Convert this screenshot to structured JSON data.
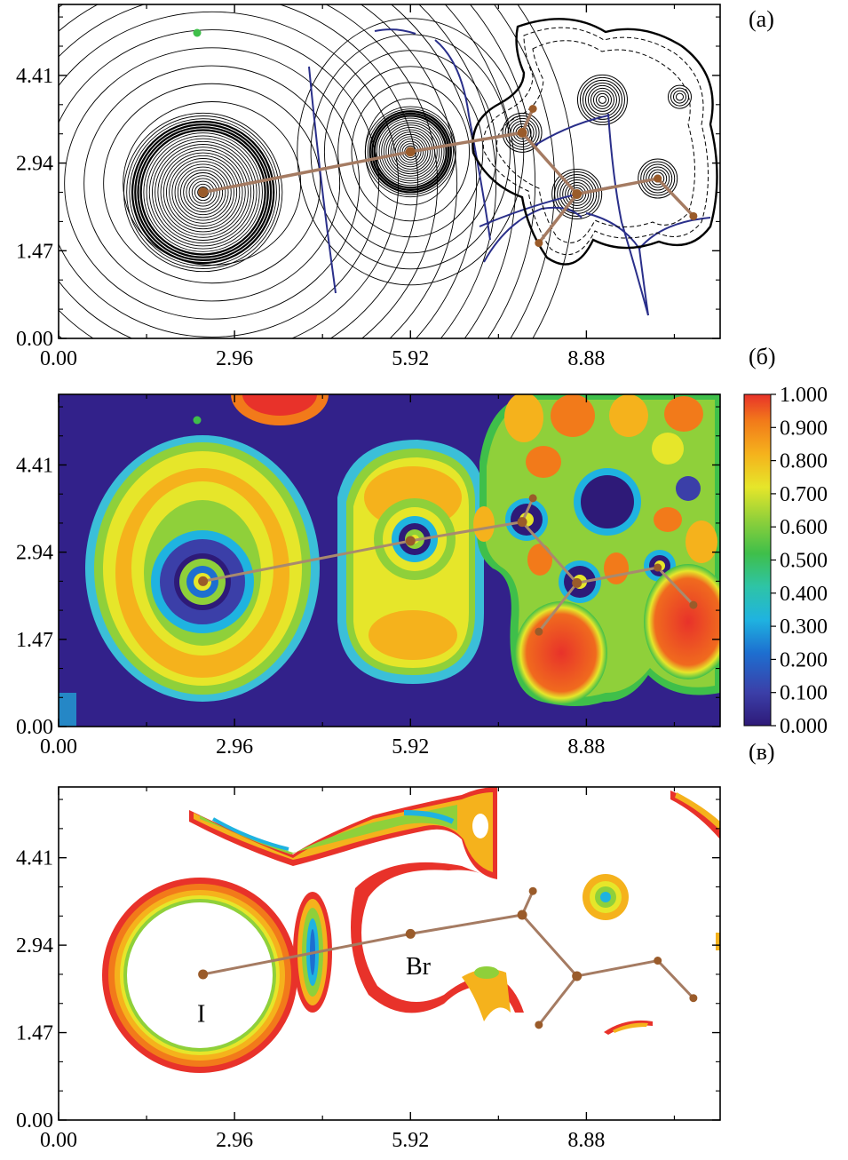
{
  "panels": [
    {
      "label": "(а)"
    },
    {
      "label": "(б)"
    },
    {
      "label": "(в)"
    }
  ],
  "chart_data": [
    {
      "type": "contour",
      "panel": "(а)",
      "x_ticks": [
        "0.00",
        "2.96",
        "5.92",
        "8.88"
      ],
      "y_ticks": [
        "0.00",
        "1.47",
        "2.94",
        "4.41"
      ],
      "xlim": [
        0,
        11.13
      ],
      "ylim": [
        0,
        5.6
      ],
      "atoms": [
        {
          "x": 2.43,
          "y": 2.45
        },
        {
          "x": 5.92,
          "y": 3.13
        },
        {
          "x": 7.8,
          "y": 3.45
        },
        {
          "x": 8.72,
          "y": 2.42
        },
        {
          "x": 10.08,
          "y": 2.68
        },
        {
          "x": 8.08,
          "y": 1.6
        },
        {
          "x": 10.68,
          "y": 2.05
        },
        {
          "x": 7.98,
          "y": 3.85
        }
      ],
      "bonds": [
        [
          0,
          1
        ],
        [
          1,
          2
        ],
        [
          2,
          3
        ],
        [
          3,
          4
        ],
        [
          3,
          5
        ],
        [
          4,
          6
        ],
        [
          2,
          7
        ]
      ],
      "colors": {
        "contour": "#000000",
        "zero_flux": "#2a2f8a",
        "bond": "#a57b62",
        "atom": "#9a5b2a"
      }
    },
    {
      "type": "heatmap",
      "panel": "(б)",
      "x_ticks": [
        "0.00",
        "2.96",
        "5.92",
        "8.88"
      ],
      "y_ticks": [
        "0.00",
        "1.47",
        "2.94",
        "4.41"
      ],
      "xlim": [
        0,
        11.13
      ],
      "ylim": [
        0,
        5.6
      ],
      "colorbar_ticks": [
        "0.000",
        "0.100",
        "0.200",
        "0.300",
        "0.400",
        "0.500",
        "0.600",
        "0.700",
        "0.800",
        "0.900",
        "1.000"
      ],
      "colorbar_range": [
        0.0,
        1.0
      ],
      "colormap": [
        "#2e1a78",
        "#3b3fa8",
        "#1d93d6",
        "#27c2c0",
        "#3fbf4a",
        "#8fd03a",
        "#e6e62a",
        "#f5b21c",
        "#f27a1a",
        "#e8322a"
      ]
    },
    {
      "type": "heatmap",
      "panel": "(в)",
      "x_ticks": [
        "0.00",
        "2.96",
        "5.92",
        "8.88"
      ],
      "y_ticks": [
        "0.00",
        "1.47",
        "2.94",
        "4.41"
      ],
      "xlim": [
        0,
        11.13
      ],
      "ylim": [
        0,
        5.6
      ],
      "annotations": [
        {
          "text": "I",
          "x": 2.4,
          "y": 1.65
        },
        {
          "text": "Br",
          "x": 6.05,
          "y": 2.45
        }
      ]
    }
  ]
}
